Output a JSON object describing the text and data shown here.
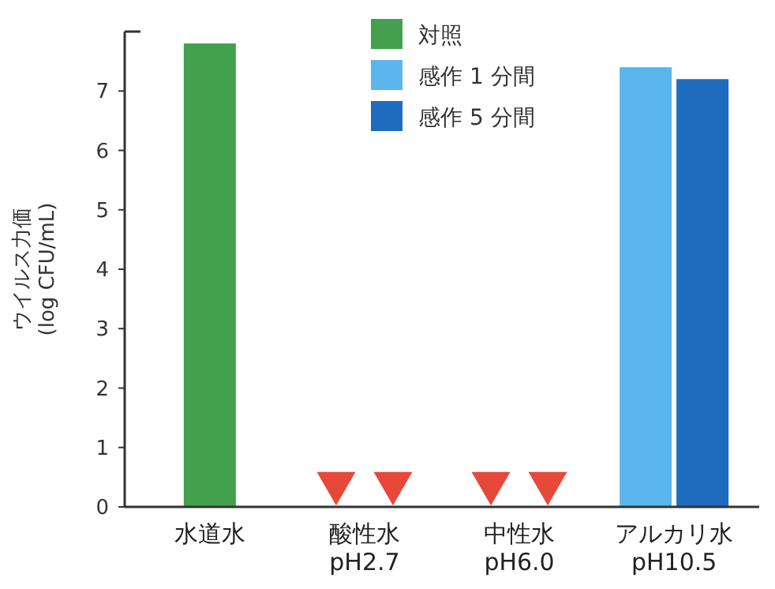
{
  "chart_data": {
    "type": "bar",
    "ylabel": "ウイルス力価\n(log CFU/mL)",
    "categories": [
      "水道水",
      "酸性水\npH2.7",
      "中性水\npH6.0",
      "アルカリ水\npH10.5"
    ],
    "series": [
      {
        "name": "対照",
        "color": "#43a04d",
        "values": [
          7.8,
          null,
          null,
          null
        ]
      },
      {
        "name": "感作 1 分間",
        "color": "#5cb6ee",
        "values": [
          null,
          null,
          null,
          7.4
        ]
      },
      {
        "name": "感作 5 分間",
        "color": "#1e6cc0",
        "values": [
          null,
          null,
          null,
          7.2
        ]
      },
      {
        "type": "scatter",
        "marker": "triangle",
        "color": "#e8483a",
        "values": [
          null,
          0.4,
          0.4,
          null
        ]
      },
      {
        "type": "scatter",
        "marker": "triangle",
        "color": "#e8483a",
        "values": [
          null,
          0.4,
          0.4,
          null
        ]
      }
    ],
    "ylim": [
      0,
      8
    ],
    "yticks": [
      0,
      1,
      2,
      3,
      4,
      5,
      6,
      7
    ],
    "legend": "top",
    "grid": false
  }
}
